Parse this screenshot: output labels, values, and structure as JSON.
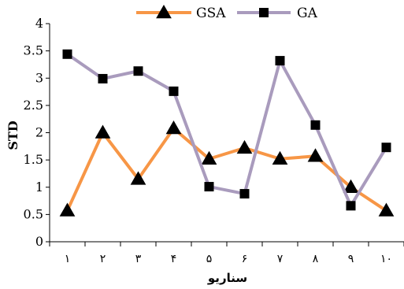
{
  "chart_data": {
    "type": "line",
    "categories": [
      "۱",
      "۲",
      "۳",
      "۴",
      "۵",
      "۶",
      "۷",
      "۸",
      "۹",
      "۱۰"
    ],
    "xlabel": "سناریو",
    "ylabel": "STD",
    "ylim": [
      0,
      4
    ],
    "yticks": [
      "0",
      "0.5",
      "1",
      "1.5",
      "2",
      "2.5",
      "3",
      "3.5",
      "4"
    ],
    "grid": false,
    "legend_position": "top",
    "series": [
      {
        "name": "GSA",
        "color": "#F79646",
        "marker": "triangle",
        "values": [
          0.57,
          2.0,
          1.15,
          2.08,
          1.52,
          1.72,
          1.52,
          1.57,
          1.0,
          0.57
        ]
      },
      {
        "name": "GA",
        "color": "#A99BBD",
        "marker": "square",
        "values": [
          3.44,
          2.99,
          3.13,
          2.76,
          1.01,
          0.88,
          3.32,
          2.14,
          0.66,
          1.73
        ]
      }
    ]
  }
}
